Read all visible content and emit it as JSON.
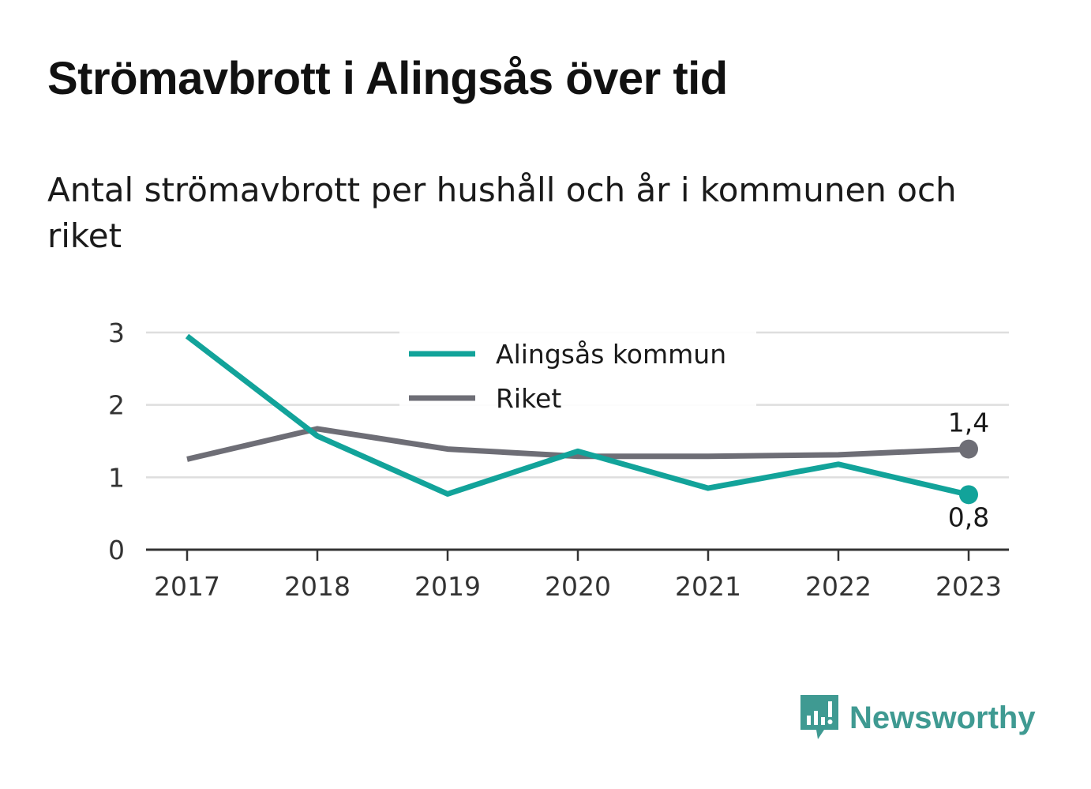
{
  "title": "Strömavbrott i Alingsås över tid",
  "subtitle": "Antal strömavbrott per hushåll och år i kommunen och riket",
  "brand": {
    "name": "Newsworthy",
    "color": "#3f9a92",
    "icon": "bar-chart-speech-bubble-icon"
  },
  "chart_data": {
    "type": "line",
    "x": [
      "2017",
      "2018",
      "2019",
      "2020",
      "2021",
      "2022",
      "2023"
    ],
    "ylim": [
      0,
      3
    ],
    "yticks": [
      "0",
      "1",
      "2",
      "3"
    ],
    "grid": true,
    "legend_position": "top-center",
    "series": [
      {
        "name": "Alingsås kommun",
        "color": "#12a39a",
        "values": [
          2.95,
          1.57,
          0.77,
          1.36,
          0.85,
          1.18,
          0.76
        ]
      },
      {
        "name": "Riket",
        "color": "#6e6e76",
        "values": [
          1.25,
          1.67,
          1.39,
          1.29,
          1.29,
          1.31,
          1.39
        ]
      }
    ],
    "end_labels": [
      "0,8",
      "1,4"
    ]
  }
}
